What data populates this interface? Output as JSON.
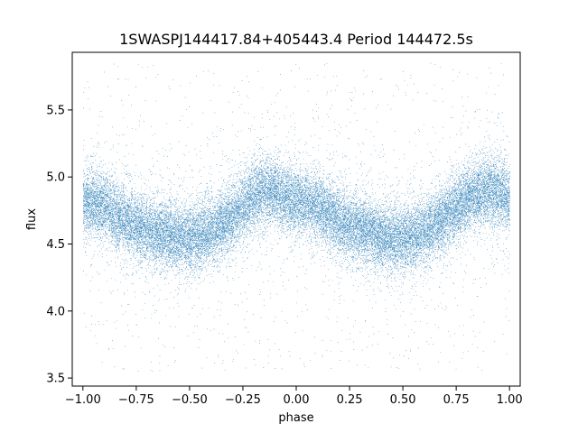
{
  "chart_data": {
    "type": "scatter",
    "title": "1SWASPJ144417.84+405443.4 Period 144472.5s",
    "xlabel": "phase",
    "ylabel": "flux",
    "xlim": [
      -1.05,
      1.05
    ],
    "ylim": [
      3.44,
      5.93
    ],
    "x_ticks": [
      -1.0,
      -0.75,
      -0.5,
      -0.25,
      0.0,
      0.25,
      0.5,
      0.75,
      1.0
    ],
    "x_tick_labels": [
      "−1.00",
      "−0.75",
      "−0.50",
      "−0.25",
      "0.00",
      "0.25",
      "0.50",
      "0.75",
      "1.00"
    ],
    "y_ticks": [
      3.5,
      4.0,
      4.5,
      5.0,
      5.5
    ],
    "y_tick_labels": [
      "3.5",
      "4.0",
      "4.5",
      "5.0",
      "5.5"
    ],
    "grid": false,
    "legend": "none",
    "series": [
      {
        "color": "#1f77b4",
        "marker_size_pt": 0.5,
        "trend_phase": [
          -1.0,
          -0.9,
          -0.8,
          -0.7,
          -0.6,
          -0.55,
          -0.5,
          -0.4,
          -0.3,
          -0.2,
          -0.15,
          -0.1,
          0.0,
          0.1,
          0.2,
          0.3,
          0.4,
          0.45,
          0.5,
          0.6,
          0.7,
          0.8,
          0.85,
          0.9,
          1.0
        ],
        "trend_flux": [
          4.82,
          4.78,
          4.67,
          4.6,
          4.57,
          4.55,
          4.54,
          4.6,
          4.7,
          4.85,
          4.9,
          4.88,
          4.82,
          4.78,
          4.67,
          4.6,
          4.56,
          4.54,
          4.54,
          4.6,
          4.7,
          4.83,
          4.88,
          4.9,
          4.85
        ],
        "scatter_sigma": 0.12,
        "outlier_range": [
          3.55,
          5.85
        ],
        "approx_point_count": 30000
      }
    ]
  }
}
